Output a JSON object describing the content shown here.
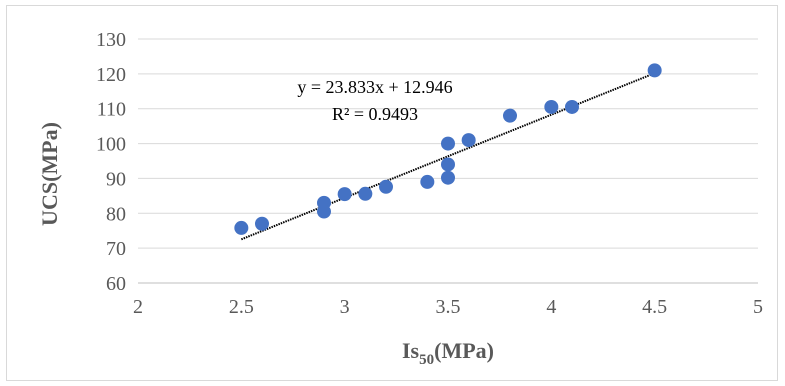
{
  "chart_data": {
    "type": "scatter",
    "xlabel_main": "Is",
    "xlabel_sub": "50",
    "xlabel_unit": "(MPa)",
    "ylabel": "UCS(MPa)",
    "xlim": [
      2,
      5
    ],
    "ylim": [
      60,
      130
    ],
    "x_ticks": [
      2,
      2.5,
      3,
      3.5,
      4,
      4.5,
      5
    ],
    "x_tick_labels": [
      "2",
      "2.5",
      "3",
      "3.5",
      "4",
      "4.5",
      "5"
    ],
    "y_ticks": [
      60,
      70,
      80,
      90,
      100,
      110,
      120,
      130
    ],
    "y_tick_labels": [
      "60",
      "70",
      "80",
      "90",
      "100",
      "110",
      "120",
      "130"
    ],
    "grid": "horizontal",
    "legend": "none",
    "marker_color": "#4472c4",
    "trendline_color": "#000000",
    "points": [
      {
        "x": 2.5,
        "y": 75.8
      },
      {
        "x": 2.6,
        "y": 77
      },
      {
        "x": 2.9,
        "y": 83
      },
      {
        "x": 2.9,
        "y": 80.5
      },
      {
        "x": 3.0,
        "y": 85.5
      },
      {
        "x": 3.1,
        "y": 85.6
      },
      {
        "x": 3.2,
        "y": 87.6
      },
      {
        "x": 3.4,
        "y": 89
      },
      {
        "x": 3.5,
        "y": 100
      },
      {
        "x": 3.5,
        "y": 94
      },
      {
        "x": 3.5,
        "y": 90.2
      },
      {
        "x": 3.6,
        "y": 101
      },
      {
        "x": 3.8,
        "y": 108
      },
      {
        "x": 4.0,
        "y": 110.5
      },
      {
        "x": 4.1,
        "y": 110.5
      },
      {
        "x": 4.5,
        "y": 121
      }
    ],
    "trendline": {
      "slope": 23.833,
      "intercept": 12.946,
      "x_range": [
        2.5,
        4.5
      ],
      "equation_label": "y = 23.833x + 12.946",
      "r2_label": "R² = 0.9493"
    }
  }
}
